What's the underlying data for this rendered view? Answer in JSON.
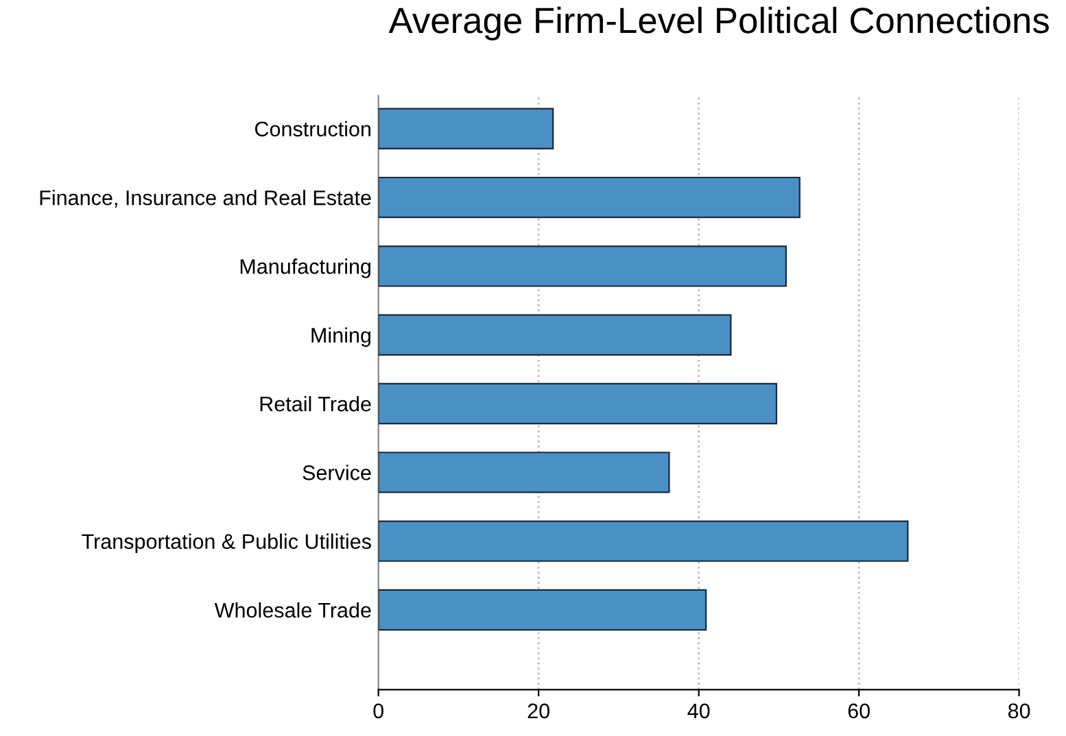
{
  "chart_data": {
    "type": "bar",
    "orientation": "horizontal",
    "title": "Average Firm-Level Political Connections",
    "categories": [
      "Construction",
      "Finance, Insurance and Real Estate",
      "Manufacturing",
      "Mining",
      "Retail Trade",
      "Service",
      "Transportation & Public Utilities",
      "Wholesale Trade"
    ],
    "values": [
      21.8,
      52.6,
      50.9,
      44.0,
      49.7,
      36.3,
      66.1,
      40.9
    ],
    "color": "#4a90c4",
    "xlim": [
      0,
      80
    ],
    "xticks": [
      0,
      20,
      40,
      60,
      80
    ],
    "grid": "x"
  }
}
